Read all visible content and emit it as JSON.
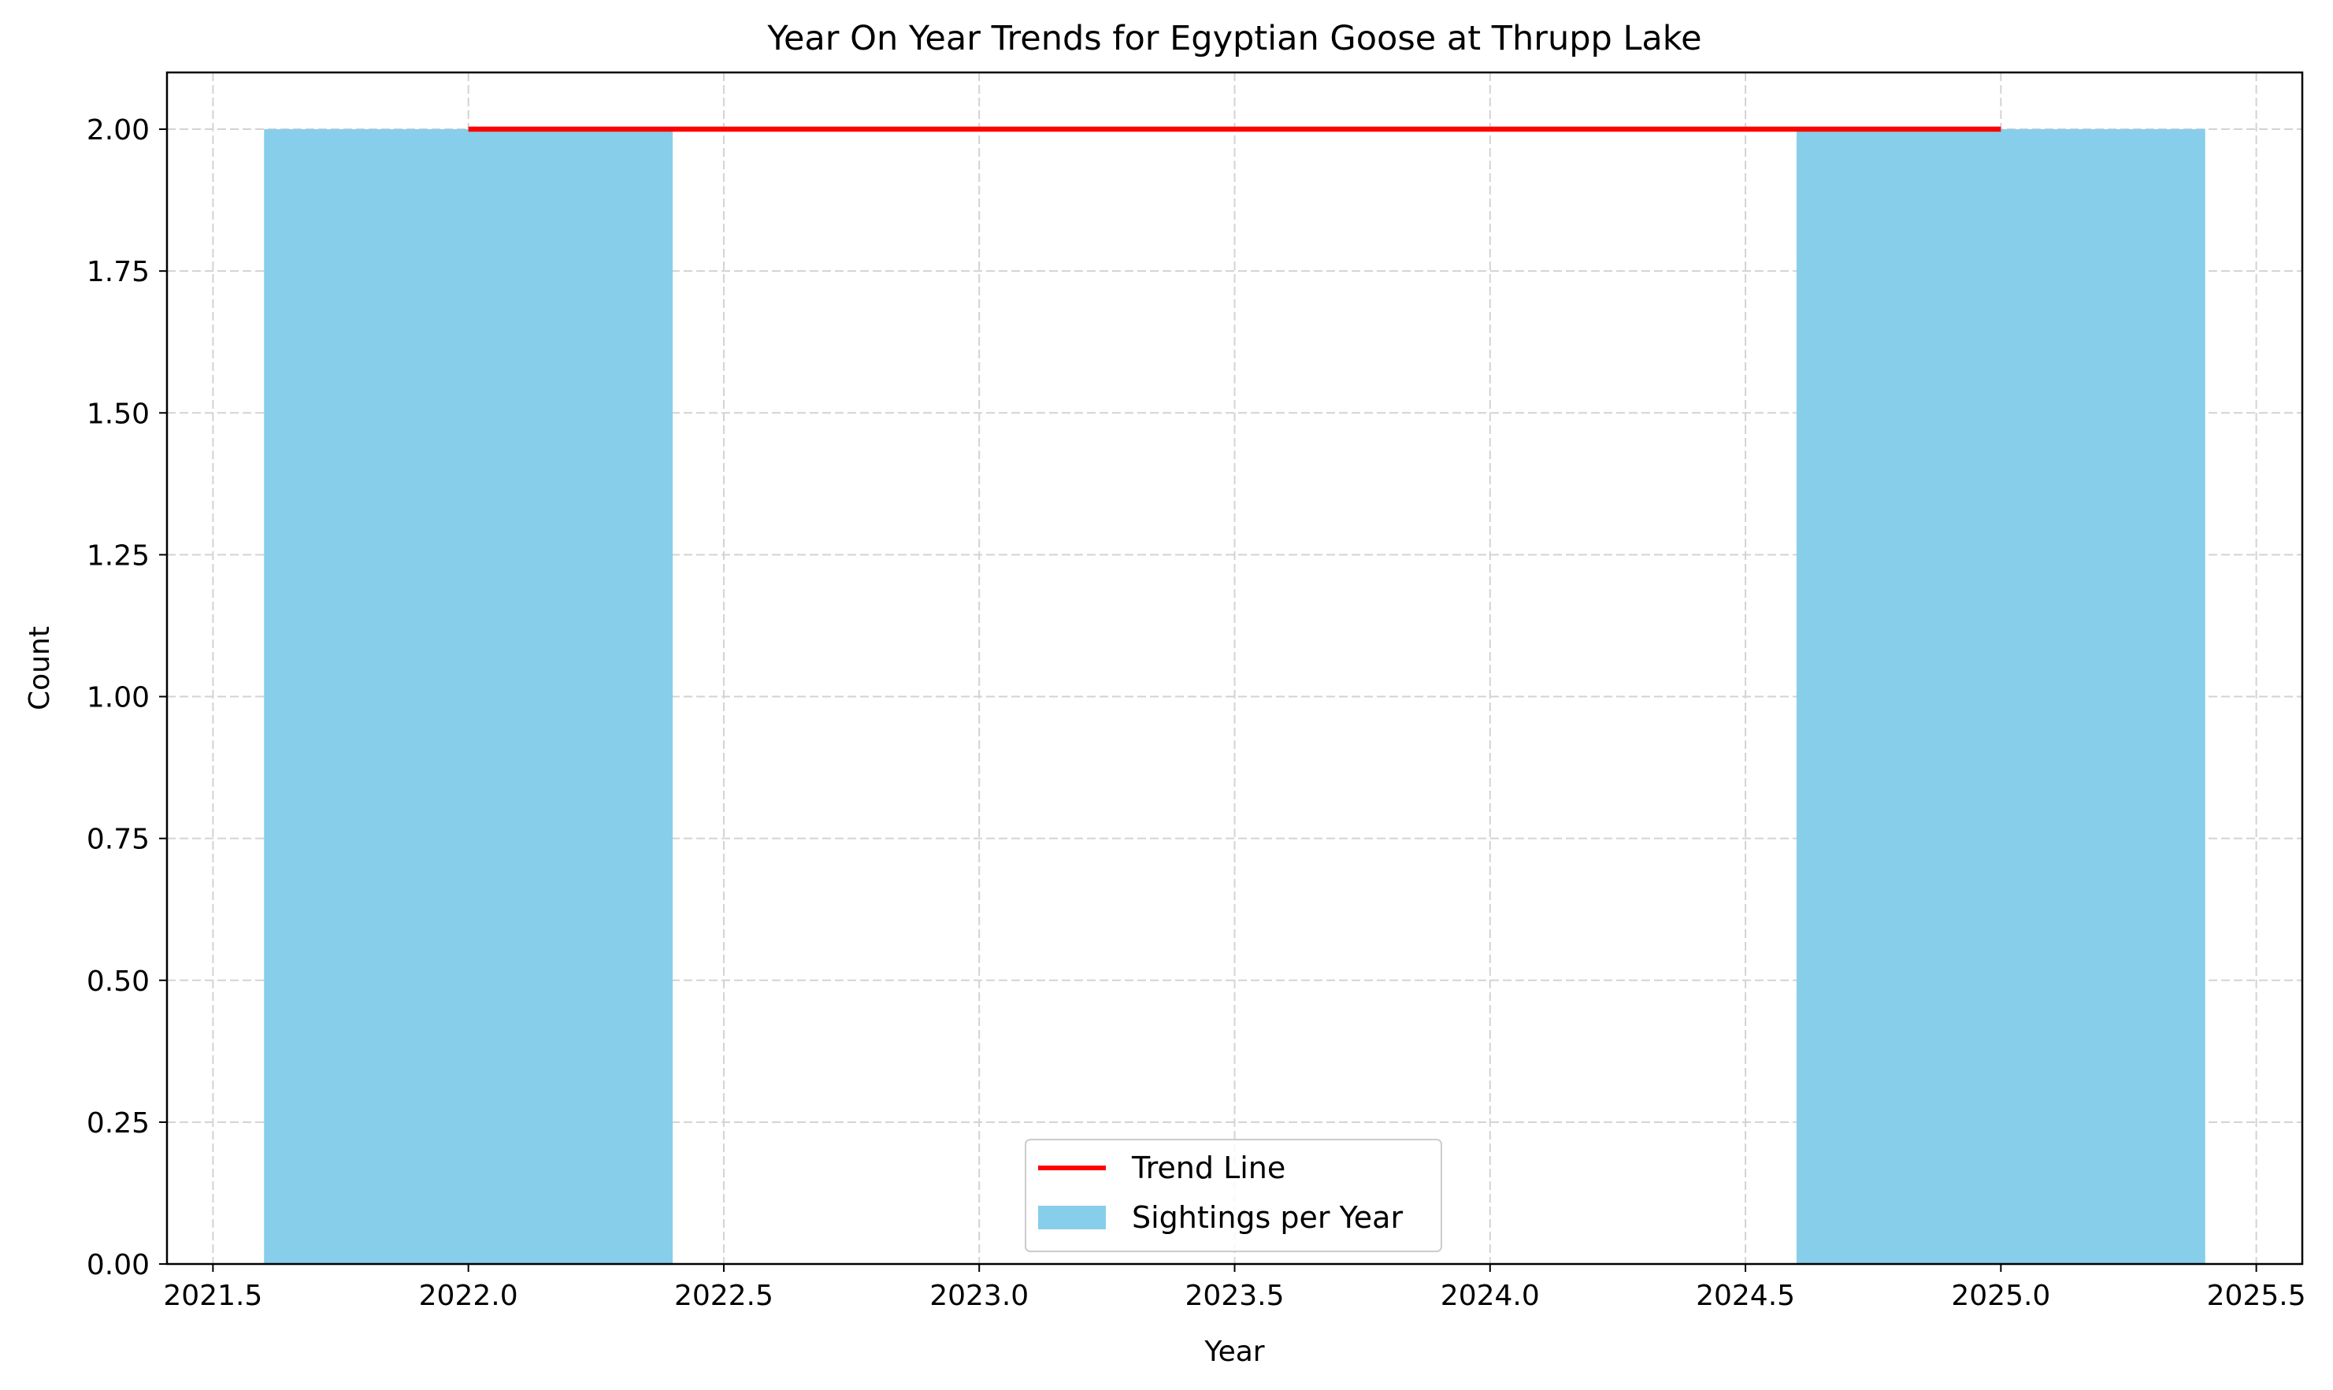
{
  "chart_data": {
    "type": "bar",
    "title": "Year On Year Trends for Egyptian Goose at Thrupp Lake",
    "xlabel": "Year",
    "ylabel": "Count",
    "xlim": [
      2021.41,
      2025.59
    ],
    "ylim": [
      0,
      2.1
    ],
    "x_ticks": [
      2021.5,
      2022.0,
      2022.5,
      2023.0,
      2023.5,
      2024.0,
      2024.5,
      2025.0,
      2025.5
    ],
    "x_tick_labels": [
      "2021.5",
      "2022.0",
      "2022.5",
      "2023.0",
      "2023.5",
      "2024.0",
      "2024.5",
      "2025.0",
      "2025.5"
    ],
    "y_ticks": [
      0,
      0.25,
      0.5,
      0.75,
      1.0,
      1.25,
      1.5,
      1.75,
      2.0
    ],
    "y_tick_labels": [
      "0.00",
      "0.25",
      "0.50",
      "0.75",
      "1.00",
      "1.25",
      "1.50",
      "1.75",
      "2.00"
    ],
    "grid": true,
    "legend_position": "bottom-center",
    "series": [
      {
        "name": "Sightings per Year",
        "type": "bar",
        "color": "#87ceeb",
        "bar_width": 0.8,
        "x": [
          2022,
          2025
        ],
        "values": [
          2,
          2
        ]
      },
      {
        "name": "Trend Line",
        "type": "line",
        "color": "#ff0000",
        "x": [
          2022,
          2025
        ],
        "values": [
          2,
          2
        ]
      }
    ]
  }
}
